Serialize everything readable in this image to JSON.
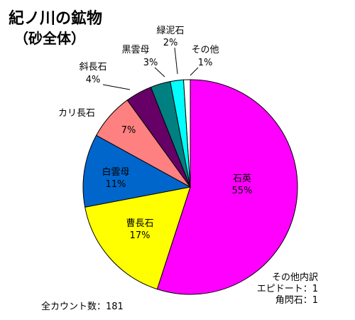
{
  "chart_data": {
    "type": "pie",
    "title": "紀ノ川の鉱物",
    "subtitle": "（砂全体）",
    "slices": [
      {
        "name": "石英",
        "value": 55,
        "label": "55%",
        "color": "#ff00ff"
      },
      {
        "name": "曹長石",
        "value": 17,
        "label": "17%",
        "color": "#ffff00"
      },
      {
        "name": "白雲母",
        "value": 11,
        "label": "11%",
        "color": "#0066cc"
      },
      {
        "name": "カリ長石",
        "value": 7,
        "label": "7%",
        "color": "#ff8080"
      },
      {
        "name": "斜長石",
        "value": 4,
        "label": "4%",
        "color": "#660066"
      },
      {
        "name": "黒雲母",
        "value": 3,
        "label": "3%",
        "color": "#008080"
      },
      {
        "name": "緑泥石",
        "value": 2,
        "label": "2%",
        "color": "#00ffff"
      },
      {
        "name": "その他",
        "value": 1,
        "label": "1%",
        "color": "#ffffff"
      }
    ],
    "annotations": {
      "other_breakdown_title": "その他内訳",
      "other_breakdown_items": [
        "エピドート：1",
        "角閃石：1"
      ],
      "total_count": "全カウント数：181"
    }
  }
}
